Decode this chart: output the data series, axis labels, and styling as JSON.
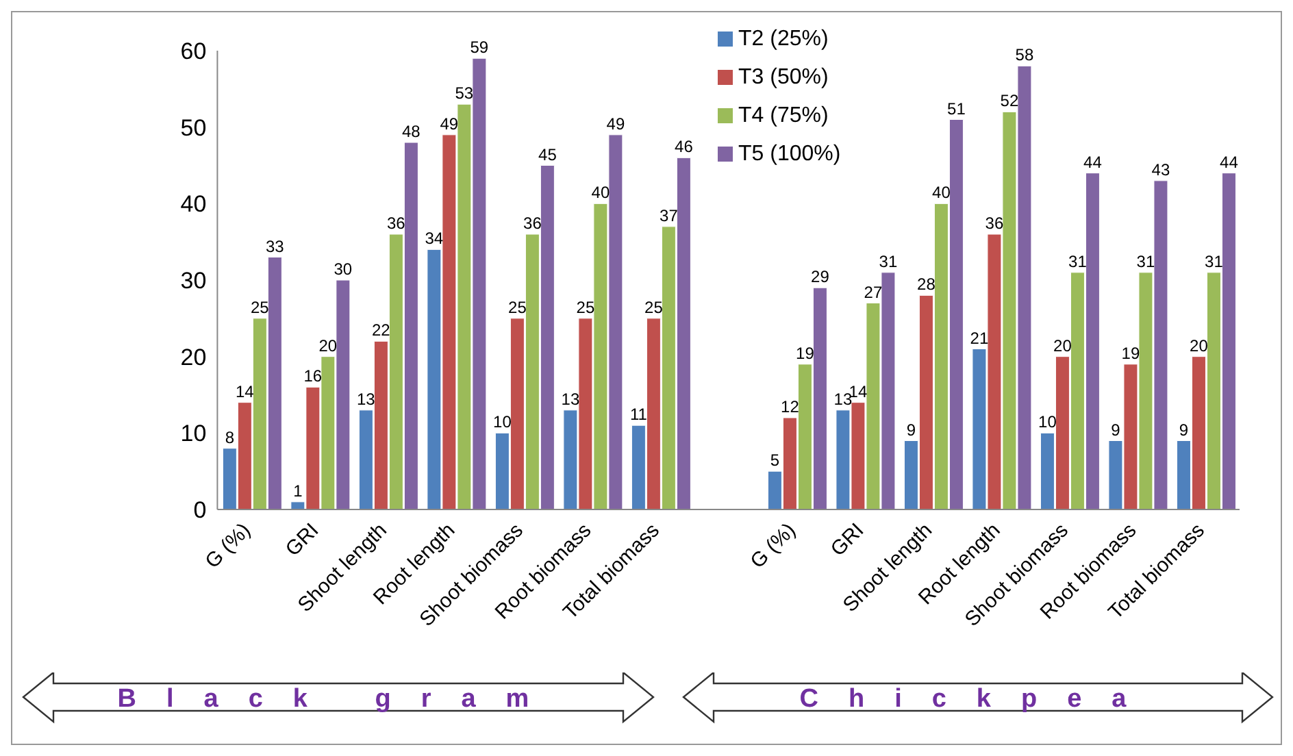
{
  "chart_data": {
    "type": "bar",
    "categories": [
      "G (%)",
      "GRI",
      "Shoot length",
      "Root length",
      "Shoot biomass",
      "Root  biomass",
      "Total biomass",
      null,
      "G (%)",
      "GRI",
      "Shoot length",
      "Root length",
      "Shoot biomass",
      "Root  biomass",
      "Total biomass"
    ],
    "series": [
      {
        "name": "T2 (25%)",
        "color": "#4f81bd",
        "values": [
          8,
          1,
          13,
          34,
          10,
          13,
          11,
          null,
          5,
          13,
          9,
          21,
          10,
          9,
          9
        ]
      },
      {
        "name": "T3 (50%)",
        "color": "#c0504d",
        "values": [
          14,
          16,
          22,
          49,
          25,
          25,
          25,
          null,
          12,
          14,
          28,
          36,
          20,
          19,
          20
        ]
      },
      {
        "name": "T4 (75%)",
        "color": "#9bbb59",
        "values": [
          25,
          20,
          36,
          53,
          36,
          40,
          37,
          null,
          19,
          27,
          40,
          52,
          31,
          31,
          31
        ]
      },
      {
        "name": "T5 (100%)",
        "color": "#8064a2",
        "values": [
          33,
          30,
          48,
          59,
          45,
          49,
          46,
          null,
          29,
          31,
          51,
          58,
          44,
          43,
          44
        ]
      }
    ],
    "ylim": [
      0,
      60
    ],
    "yticks": [
      0,
      10,
      20,
      30,
      40,
      50,
      60
    ],
    "grid": false,
    "legend": "top",
    "data_labels": true,
    "annotations": [
      "Black gram",
      "Chickpea"
    ]
  }
}
